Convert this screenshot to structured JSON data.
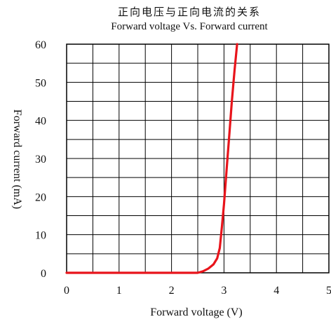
{
  "chart_data": {
    "type": "line",
    "title": "正向电压与正向电流的关系",
    "subtitle": "Forward voltage Vs. Forward current",
    "xlabel": "Forward voltage (V)",
    "ylabel": "Forward current (mA)",
    "xlim": [
      0,
      5
    ],
    "ylim": [
      0,
      60
    ],
    "grid": true,
    "x_minor_step": 0.5,
    "y_minor_step": 5,
    "x_ticks": [
      0,
      1,
      2,
      3,
      4,
      5
    ],
    "y_ticks": [
      0,
      10,
      20,
      30,
      40,
      50,
      60
    ],
    "series": [
      {
        "color": "#e8141b",
        "points": [
          [
            0,
            0
          ],
          [
            2.5,
            0
          ],
          [
            2.6,
            0.4
          ],
          [
            2.7,
            1.1
          ],
          [
            2.8,
            2.2
          ],
          [
            2.87,
            3.8
          ],
          [
            2.92,
            6.5
          ],
          [
            2.96,
            12
          ],
          [
            3.0,
            18
          ],
          [
            3.05,
            27
          ],
          [
            3.1,
            36
          ],
          [
            3.15,
            45
          ],
          [
            3.2,
            53
          ],
          [
            3.25,
            60
          ]
        ]
      }
    ]
  }
}
